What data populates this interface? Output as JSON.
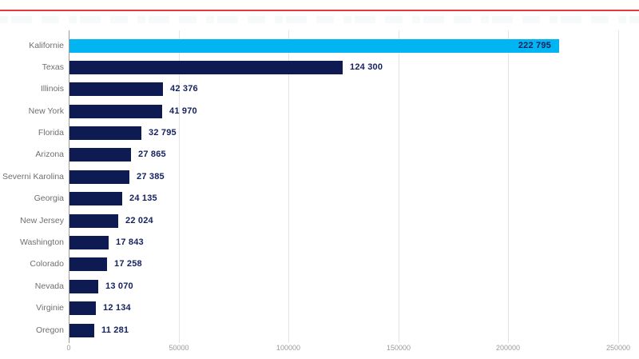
{
  "page": {
    "top_rule_color": "#df3a40",
    "background_color": "#ffffff"
  },
  "chart_data": {
    "type": "bar",
    "orientation": "horizontal",
    "title": "",
    "xlabel": "",
    "ylabel": "",
    "categories": [
      "Kalifornie",
      "Texas",
      "Illinois",
      "New York",
      "Florida",
      "Arizona",
      "Severni Karolina",
      "Georgia",
      "New Jersey",
      "Washington",
      "Colorado",
      "Nevada",
      "Virginie",
      "Oregon"
    ],
    "values": [
      222795,
      124300,
      42376,
      41970,
      32795,
      27865,
      27385,
      24135,
      22024,
      17843,
      17258,
      13070,
      12134,
      11281
    ],
    "value_labels": [
      "222 795",
      "124 300",
      "42 376",
      "41 970",
      "32 795",
      "27 865",
      "27 385",
      "24 135",
      "22 024",
      "17 843",
      "17 258",
      "13 070",
      "12 134",
      "11 281"
    ],
    "xlim": [
      0,
      250000
    ],
    "x_tick_values": [
      0,
      50000,
      100000,
      150000,
      200000,
      250000
    ],
    "x_tick_labels": [
      "0",
      "50000",
      "100000",
      "150000",
      "200000",
      "250000"
    ],
    "grid": true,
    "legend": false,
    "highlight_index": 0,
    "colors": {
      "highlight_bar": "#00b5f1",
      "default_bar": "#0d1b52",
      "value_label": "#14215e",
      "category_label": "#6f6f6f",
      "tick_label": "#9a9a9a",
      "gridline": "#e5e5e5",
      "axis_line": "#9b9b9b"
    }
  }
}
